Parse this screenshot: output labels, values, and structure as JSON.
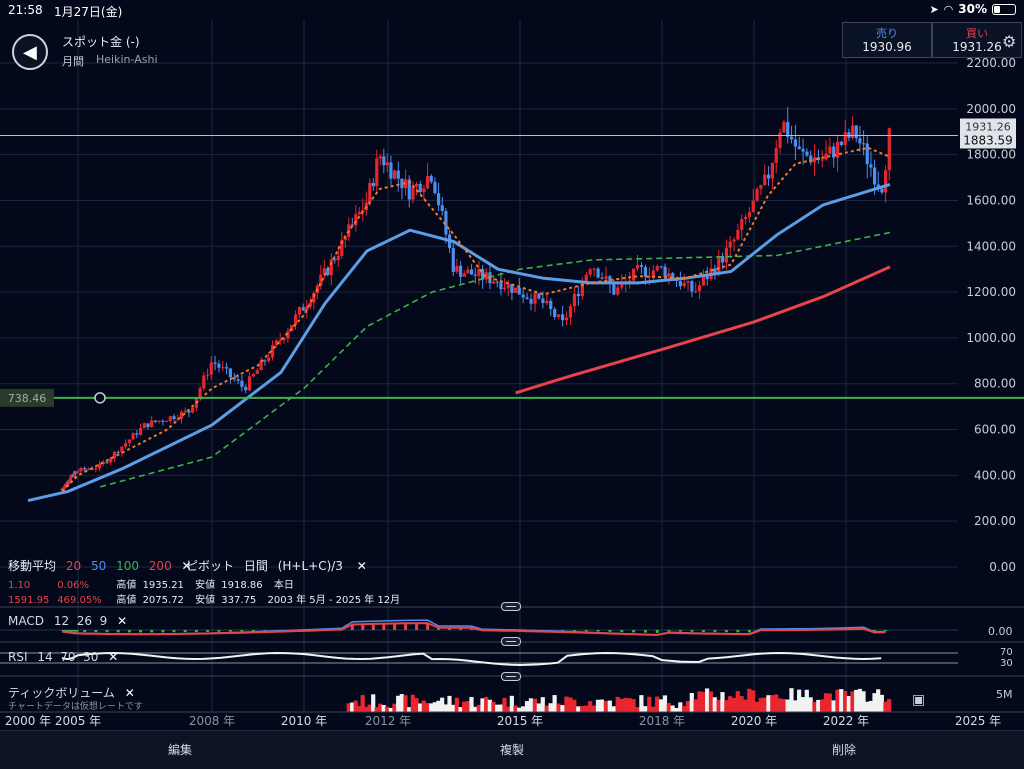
{
  "status_bar": {
    "time": "21:58",
    "date": "1月27日(金)",
    "battery": "30%"
  },
  "symbol": {
    "name": "スポット金 (-)",
    "period": "月間",
    "chart_type": "Heikin-Ashi"
  },
  "quotes": {
    "sell_label": "売り",
    "sell_value": "1930.96",
    "buy_label": "買い",
    "buy_value": "1931.26"
  },
  "price_axis": {
    "ticks": [
      "2200.00",
      "2000.00",
      "1800.00",
      "1600.00",
      "1400.00",
      "1200.00",
      "1000.00",
      "800.00",
      "600.00",
      "400.00",
      "200.00",
      "0.00"
    ],
    "current_tag": "1931.26",
    "last_tag": "1883.59",
    "line_tag": "738.46"
  },
  "time_axis": {
    "ticks": [
      "2000 年",
      "2005 年",
      "2008 年",
      "2010 年",
      "2012 年",
      "2015 年",
      "2018 年",
      "2020 年",
      "2022 年",
      "2025 年"
    ]
  },
  "moving_average": {
    "title": "移動平均",
    "periods": [
      "20",
      "50",
      "100",
      "200"
    ],
    "colors": [
      "#e8424a",
      "#4d8ef0",
      "#3bb24a",
      "#e8424a"
    ]
  },
  "pivot": {
    "title": "ピボット",
    "period": "日間",
    "formula": "(H+L+C)/3"
  },
  "stats": {
    "row1_a": "1.10",
    "row1_b": "0.06%",
    "row1_high_label": "高値",
    "row1_high": "1935.21",
    "row1_low_label": "安値",
    "row1_low": "1918.86",
    "row1_range": "本日",
    "row2_a": "1591.95",
    "row2_b": "469.05%",
    "row2_high_label": "高値",
    "row2_high": "2075.72",
    "row2_low_label": "安値",
    "row2_low": "337.75",
    "row2_range": "2003 年 5月 - 2025 年 12月"
  },
  "macd": {
    "title": "MACD",
    "params": "12  26  9",
    "axis": "0.00"
  },
  "rsi": {
    "title": "RSI",
    "params": "14  70  30",
    "upper": "70",
    "lower": "30"
  },
  "volume": {
    "title": "ティックボリューム",
    "note": "チャートデータは仮想レートです",
    "axis": "5M"
  },
  "toolbar": {
    "edit": "編集",
    "duplicate": "複製",
    "delete": "削除"
  },
  "chart_data": {
    "type": "candlestick",
    "title": "スポット金 (-)",
    "ylim": [
      0,
      2200
    ],
    "x_labels": [
      "2000 年",
      "2005 年",
      "2008 年",
      "2010 年",
      "2012 年",
      "2015 年",
      "2018 年",
      "2020 年",
      "2022 年",
      "2025 年"
    ],
    "price_points": [
      [
        2003.4,
        340
      ],
      [
        2004.5,
        400
      ],
      [
        2005.5,
        440
      ],
      [
        2006.5,
        620
      ],
      [
        2007.5,
        680
      ],
      [
        2008.0,
        900
      ],
      [
        2008.7,
        780
      ],
      [
        2009.5,
        1000
      ],
      [
        2010.5,
        1280
      ],
      [
        2011.5,
        1600
      ],
      [
        2011.8,
        1800
      ],
      [
        2012.5,
        1640
      ],
      [
        2013.0,
        1720
      ],
      [
        2013.5,
        1300
      ],
      [
        2014.5,
        1250
      ],
      [
        2015.5,
        1150
      ],
      [
        2015.9,
        1060
      ],
      [
        2016.5,
        1330
      ],
      [
        2017.0,
        1200
      ],
      [
        2017.5,
        1290
      ],
      [
        2018.0,
        1300
      ],
      [
        2018.7,
        1200
      ],
      [
        2019.5,
        1400
      ],
      [
        2020.3,
        1700
      ],
      [
        2020.6,
        1950
      ],
      [
        2021.0,
        1800
      ],
      [
        2021.5,
        1780
      ],
      [
        2022.2,
        1900
      ],
      [
        2022.8,
        1650
      ],
      [
        2023.0,
        1900
      ]
    ],
    "ma20": [
      [
        2003.4,
        330
      ],
      [
        2005,
        400
      ],
      [
        2007,
        600
      ],
      [
        2008,
        780
      ],
      [
        2009,
        880
      ],
      [
        2010,
        1100
      ],
      [
        2011,
        1450
      ],
      [
        2011.8,
        1650
      ],
      [
        2012.5,
        1680
      ],
      [
        2013.5,
        1450
      ],
      [
        2014.2,
        1270
      ],
      [
        2015.5,
        1190
      ],
      [
        2016.5,
        1240
      ],
      [
        2017.5,
        1270
      ],
      [
        2018.5,
        1260
      ],
      [
        2019.5,
        1320
      ],
      [
        2020.3,
        1620
      ],
      [
        2020.9,
        1760
      ],
      [
        2021.8,
        1800
      ],
      [
        2022.5,
        1830
      ],
      [
        2023.0,
        1790
      ]
    ],
    "ma50": [
      [
        2000,
        290
      ],
      [
        2004,
        330
      ],
      [
        2006,
        430
      ],
      [
        2008,
        620
      ],
      [
        2009.5,
        850
      ],
      [
        2010.5,
        1150
      ],
      [
        2011.5,
        1380
      ],
      [
        2012.5,
        1470
      ],
      [
        2013.5,
        1420
      ],
      [
        2014.5,
        1300
      ],
      [
        2015.5,
        1260
      ],
      [
        2016.5,
        1240
      ],
      [
        2017.5,
        1240
      ],
      [
        2018.5,
        1260
      ],
      [
        2019.5,
        1290
      ],
      [
        2020.5,
        1450
      ],
      [
        2021.5,
        1580
      ],
      [
        2023.0,
        1670
      ]
    ],
    "ma100": [
      [
        2005.5,
        350
      ],
      [
        2008,
        480
      ],
      [
        2010,
        780
      ],
      [
        2011.5,
        1050
      ],
      [
        2013,
        1200
      ],
      [
        2015,
        1300
      ],
      [
        2016.5,
        1340
      ],
      [
        2018.5,
        1350
      ],
      [
        2020.5,
        1360
      ],
      [
        2023.0,
        1460
      ]
    ],
    "ma200": [
      [
        2014.9,
        760
      ],
      [
        2016,
        830
      ],
      [
        2018,
        950
      ],
      [
        2020,
        1070
      ],
      [
        2021.5,
        1180
      ],
      [
        2023.0,
        1310
      ]
    ],
    "horizontal_line": 738.46
  }
}
